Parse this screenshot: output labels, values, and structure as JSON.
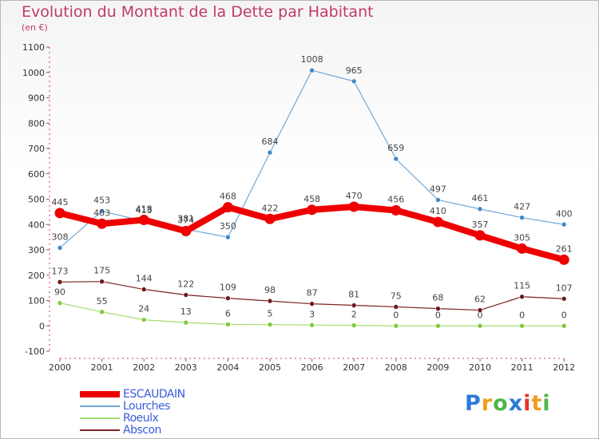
{
  "title": "Evolution du Montant de la Dette par Habitant",
  "subtitle": "(en €)",
  "logo": {
    "letters": [
      {
        "ch": "P",
        "color": "#2b7bd8"
      },
      {
        "ch": "r",
        "color": "#f29d1b"
      },
      {
        "ch": "o",
        "color": "#4fb648"
      },
      {
        "ch": "x",
        "color": "#2b7bd8"
      },
      {
        "ch": "i",
        "color": "#e4342c"
      },
      {
        "ch": "t",
        "color": "#f29d1b"
      },
      {
        "ch": "i",
        "color": "#4fb648"
      }
    ]
  },
  "chart_data": {
    "type": "line",
    "x": [
      "2000",
      "2001",
      "2002",
      "2003",
      "2004",
      "2005",
      "2006",
      "2007",
      "2008",
      "2009",
      "2010",
      "2011",
      "2012"
    ],
    "ylim": [
      -100,
      1100
    ],
    "yticks": [
      -100,
      0,
      100,
      200,
      300,
      400,
      500,
      600,
      700,
      800,
      900,
      1000,
      1100
    ],
    "grid": false,
    "legend_position": "bottom-left",
    "series": [
      {
        "name": "ESCAUDAIN",
        "color": "#ee0000",
        "emphasis": true,
        "values": [
          445,
          403,
          418,
          374,
          468,
          422,
          458,
          470,
          456,
          410,
          357,
          305,
          261
        ]
      },
      {
        "name": "Lourches",
        "color": "#6fa8d8",
        "marker": "#3f87c9",
        "values": [
          308,
          453,
          413,
          381,
          350,
          684,
          1008,
          965,
          659,
          497,
          461,
          427,
          400
        ]
      },
      {
        "name": "Roeulx",
        "color": "#a3dc6e",
        "marker": "#7fcc3a",
        "values": [
          90,
          55,
          24,
          13,
          6,
          5,
          3,
          2,
          0,
          0,
          0,
          0,
          0
        ]
      },
      {
        "name": "Abscon",
        "color": "#7a2222",
        "marker": "#6e1a1a",
        "values": [
          173,
          175,
          144,
          122,
          109,
          98,
          87,
          81,
          75,
          68,
          62,
          115,
          107
        ]
      }
    ]
  }
}
